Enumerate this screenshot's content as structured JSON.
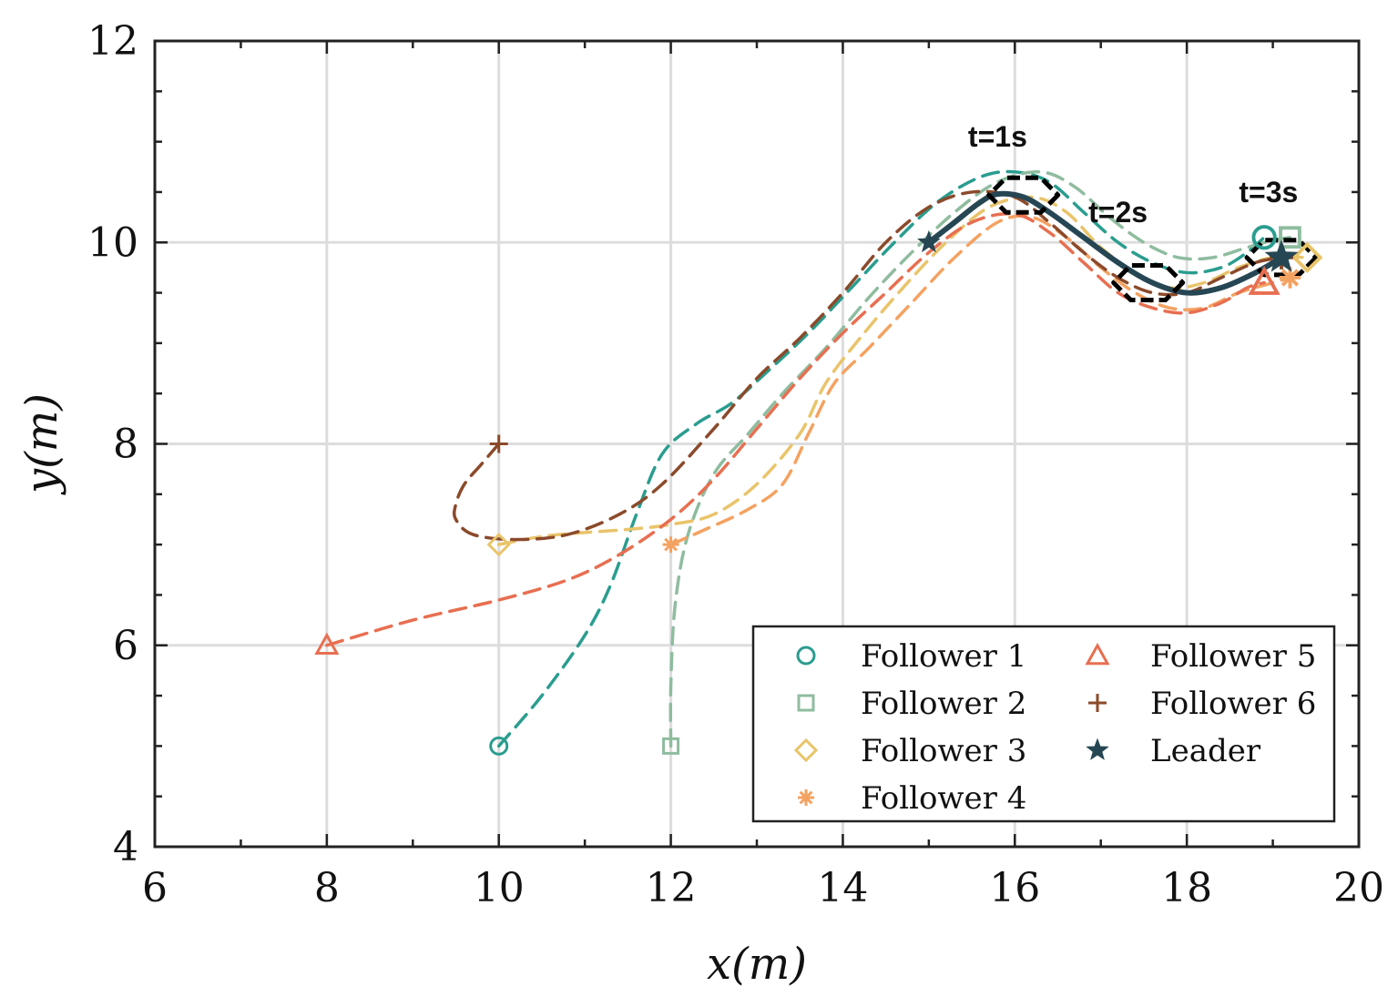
{
  "chart_data": {
    "type": "line",
    "title": "",
    "xlabel": "x(m)",
    "ylabel": "y(m)",
    "xlim": [
      6,
      20
    ],
    "ylim": [
      4,
      12
    ],
    "xticks": [
      6,
      8,
      10,
      12,
      14,
      16,
      18,
      20
    ],
    "yticks": [
      4,
      6,
      8,
      10,
      12
    ],
    "grid": true,
    "legend_position": "bottom-right",
    "series": [
      {
        "name": "Follower 1",
        "color": "#2a9d8f",
        "marker": "circle",
        "dashed": true,
        "points": [
          [
            10,
            5
          ],
          [
            10.5,
            5.5
          ],
          [
            11,
            6.1
          ],
          [
            11.3,
            6.6
          ],
          [
            11.6,
            7.3
          ],
          [
            11.9,
            7.9
          ],
          [
            12.3,
            8.2
          ],
          [
            12.7,
            8.4
          ],
          [
            13.1,
            8.7
          ],
          [
            13.6,
            9.1
          ],
          [
            14.1,
            9.55
          ],
          [
            14.6,
            10.0
          ],
          [
            15.1,
            10.4
          ],
          [
            15.6,
            10.65
          ],
          [
            16.0,
            10.7
          ],
          [
            16.4,
            10.6
          ],
          [
            16.8,
            10.3
          ],
          [
            17.2,
            10.0
          ],
          [
            17.6,
            9.8
          ],
          [
            18.0,
            9.7
          ],
          [
            18.4,
            9.75
          ],
          [
            18.7,
            9.9
          ],
          [
            18.9,
            10.05
          ]
        ],
        "start": [
          10,
          5
        ],
        "end": [
          18.9,
          10.05
        ]
      },
      {
        "name": "Follower 2",
        "color": "#8fbc9f",
        "marker": "square",
        "dashed": true,
        "points": [
          [
            12,
            5
          ],
          [
            12.0,
            5.6
          ],
          [
            12.05,
            6.4
          ],
          [
            12.2,
            7.1
          ],
          [
            12.5,
            7.7
          ],
          [
            12.9,
            8.1
          ],
          [
            13.3,
            8.5
          ],
          [
            13.8,
            8.95
          ],
          [
            14.3,
            9.45
          ],
          [
            14.8,
            9.9
          ],
          [
            15.3,
            10.3
          ],
          [
            15.8,
            10.6
          ],
          [
            16.3,
            10.7
          ],
          [
            16.7,
            10.55
          ],
          [
            17.1,
            10.25
          ],
          [
            17.5,
            10.0
          ],
          [
            17.9,
            9.85
          ],
          [
            18.3,
            9.85
          ],
          [
            18.7,
            9.95
          ],
          [
            19.0,
            10.02
          ],
          [
            19.2,
            10.05
          ]
        ],
        "start": [
          12,
          5
        ],
        "end": [
          19.2,
          10.05
        ]
      },
      {
        "name": "Follower 3",
        "color": "#e9c46a",
        "marker": "diamond",
        "dashed": true,
        "points": [
          [
            10,
            7
          ],
          [
            10.5,
            7.08
          ],
          [
            11.0,
            7.12
          ],
          [
            11.5,
            7.15
          ],
          [
            12.0,
            7.2
          ],
          [
            12.5,
            7.3
          ],
          [
            13.0,
            7.6
          ],
          [
            13.5,
            8.1
          ],
          [
            13.8,
            8.6
          ],
          [
            14.2,
            9.05
          ],
          [
            14.7,
            9.55
          ],
          [
            15.2,
            10.0
          ],
          [
            15.7,
            10.35
          ],
          [
            16.2,
            10.45
          ],
          [
            16.6,
            10.3
          ],
          [
            17.0,
            9.95
          ],
          [
            17.4,
            9.7
          ],
          [
            17.8,
            9.55
          ],
          [
            18.2,
            9.6
          ],
          [
            18.6,
            9.75
          ],
          [
            19.0,
            9.85
          ],
          [
            19.4,
            9.85
          ]
        ],
        "start": [
          10,
          7
        ],
        "end": [
          19.4,
          9.85
        ]
      },
      {
        "name": "Follower 4",
        "color": "#f4a261",
        "marker": "asterisk",
        "dashed": true,
        "points": [
          [
            12,
            7
          ],
          [
            12.4,
            7.15
          ],
          [
            12.9,
            7.35
          ],
          [
            13.3,
            7.6
          ],
          [
            13.6,
            8.1
          ],
          [
            13.9,
            8.6
          ],
          [
            14.3,
            8.95
          ],
          [
            14.8,
            9.4
          ],
          [
            15.3,
            9.85
          ],
          [
            15.8,
            10.2
          ],
          [
            16.2,
            10.25
          ],
          [
            16.6,
            10.05
          ],
          [
            17.0,
            9.75
          ],
          [
            17.4,
            9.5
          ],
          [
            17.8,
            9.35
          ],
          [
            18.2,
            9.35
          ],
          [
            18.6,
            9.5
          ],
          [
            19.0,
            9.6
          ],
          [
            19.2,
            9.65
          ]
        ],
        "start": [
          12,
          7
        ],
        "end": [
          19.2,
          9.65
        ]
      },
      {
        "name": "Follower 5",
        "color": "#e76f51",
        "marker": "triangle",
        "dashed": true,
        "points": [
          [
            8,
            6
          ],
          [
            9.0,
            6.25
          ],
          [
            10.0,
            6.45
          ],
          [
            10.8,
            6.65
          ],
          [
            11.4,
            6.9
          ],
          [
            12.0,
            7.25
          ],
          [
            12.5,
            7.65
          ],
          [
            13.0,
            8.15
          ],
          [
            13.5,
            8.65
          ],
          [
            14.0,
            9.1
          ],
          [
            14.5,
            9.5
          ],
          [
            15.0,
            9.9
          ],
          [
            15.5,
            10.2
          ],
          [
            16.0,
            10.28
          ],
          [
            16.4,
            10.1
          ],
          [
            16.8,
            9.8
          ],
          [
            17.2,
            9.5
          ],
          [
            17.6,
            9.35
          ],
          [
            18.0,
            9.3
          ],
          [
            18.4,
            9.4
          ],
          [
            18.7,
            9.55
          ],
          [
            18.9,
            9.6
          ]
        ],
        "start": [
          8,
          6
        ],
        "end": [
          18.9,
          9.6
        ]
      },
      {
        "name": "Follower 6",
        "color": "#8b4a2b",
        "marker": "plus",
        "dashed": true,
        "points": [
          [
            10,
            8
          ],
          [
            9.8,
            7.8
          ],
          [
            9.6,
            7.6
          ],
          [
            9.5,
            7.4
          ],
          [
            9.5,
            7.25
          ],
          [
            9.7,
            7.1
          ],
          [
            10.2,
            7.05
          ],
          [
            10.8,
            7.1
          ],
          [
            11.4,
            7.3
          ],
          [
            11.9,
            7.6
          ],
          [
            12.5,
            8.15
          ],
          [
            13.0,
            8.65
          ],
          [
            13.5,
            9.05
          ],
          [
            14.0,
            9.5
          ],
          [
            14.5,
            10.0
          ],
          [
            15.0,
            10.35
          ],
          [
            15.5,
            10.5
          ],
          [
            16.0,
            10.45
          ],
          [
            16.4,
            10.2
          ],
          [
            16.8,
            9.9
          ],
          [
            17.2,
            9.65
          ],
          [
            17.6,
            9.5
          ],
          [
            18.0,
            9.5
          ],
          [
            18.4,
            9.65
          ],
          [
            18.8,
            9.8
          ],
          [
            19.1,
            9.85
          ]
        ],
        "start": [
          10,
          8
        ],
        "end": [
          19.1,
          9.85
        ]
      },
      {
        "name": "Leader",
        "color": "#264653",
        "marker": "star",
        "dashed": false,
        "points": [
          [
            15,
            10
          ],
          [
            15.3,
            10.2
          ],
          [
            15.6,
            10.4
          ],
          [
            15.8,
            10.48
          ],
          [
            16.1,
            10.45
          ],
          [
            16.4,
            10.3
          ],
          [
            16.8,
            10.05
          ],
          [
            17.2,
            9.8
          ],
          [
            17.6,
            9.6
          ],
          [
            18.0,
            9.5
          ],
          [
            18.4,
            9.55
          ],
          [
            18.8,
            9.7
          ],
          [
            19.1,
            9.85
          ]
        ],
        "start": [
          15,
          10
        ],
        "end": [
          19.1,
          9.85
        ]
      }
    ],
    "formations": [
      {
        "label": "t=1s",
        "cx": 16.1,
        "cy": 10.47
      },
      {
        "label": "t=2s",
        "cx": 17.55,
        "cy": 9.6
      },
      {
        "label": "t=3s",
        "cx": 19.1,
        "cy": 9.85
      }
    ],
    "annotations": [
      {
        "text": "t=1s",
        "x": 15.8,
        "y": 10.95
      },
      {
        "text": "t=2s",
        "x": 17.2,
        "y": 10.2
      },
      {
        "text": "t=3s",
        "x": 18.95,
        "y": 10.4
      }
    ]
  }
}
